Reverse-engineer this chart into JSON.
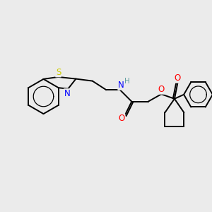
{
  "background_color": "#ebebeb",
  "atom_colors": {
    "S": "#cccc00",
    "N": "#0000ff",
    "O": "#ff0000",
    "H": "#5f9ea0",
    "C": "#000000"
  },
  "bond_color": "#000000",
  "bond_width": 1.4,
  "figsize": [
    3.0,
    3.0
  ],
  "dpi": 100,
  "xlim": [
    0,
    10
  ],
  "ylim": [
    0,
    10
  ]
}
